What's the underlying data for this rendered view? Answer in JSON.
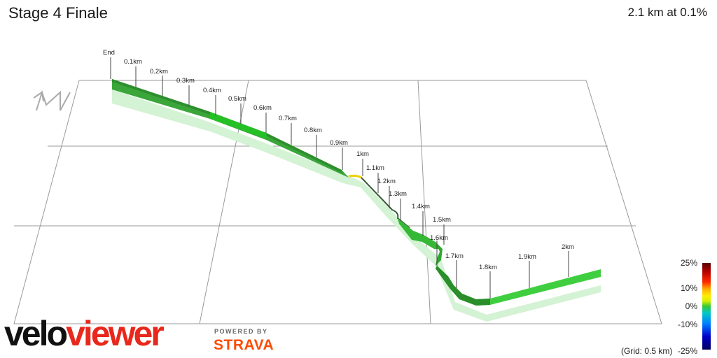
{
  "header": {
    "title": "Stage 4 Finale",
    "summary": "2.1 km at 0.1%"
  },
  "distance_markers": [
    "End",
    "0.1km",
    "0.2km",
    "0.3km",
    "0.4km",
    "0.5km",
    "0.6km",
    "0.7km",
    "0.8km",
    "0.9km",
    "1km",
    "1.1km",
    "1.2km",
    "1.3km",
    "1.4km",
    "1.5km",
    "1.6km",
    "1.7km",
    "1.8km",
    "1.9km",
    "2km"
  ],
  "legend": {
    "labels": [
      "25%",
      "10%",
      "0%",
      "-10%",
      "-25%"
    ],
    "grid_note": "(Grid: 0.5 km)"
  },
  "branding": {
    "logo_part1": "velo",
    "logo_part2": "viewer",
    "powered_by": "POWERED BY",
    "partner": "STRAVA"
  },
  "colors": {
    "route_green": "#35b835",
    "route_dark": "#2a7a2a",
    "shadow": "#c8eec8",
    "grid": "#9a9a9a"
  }
}
